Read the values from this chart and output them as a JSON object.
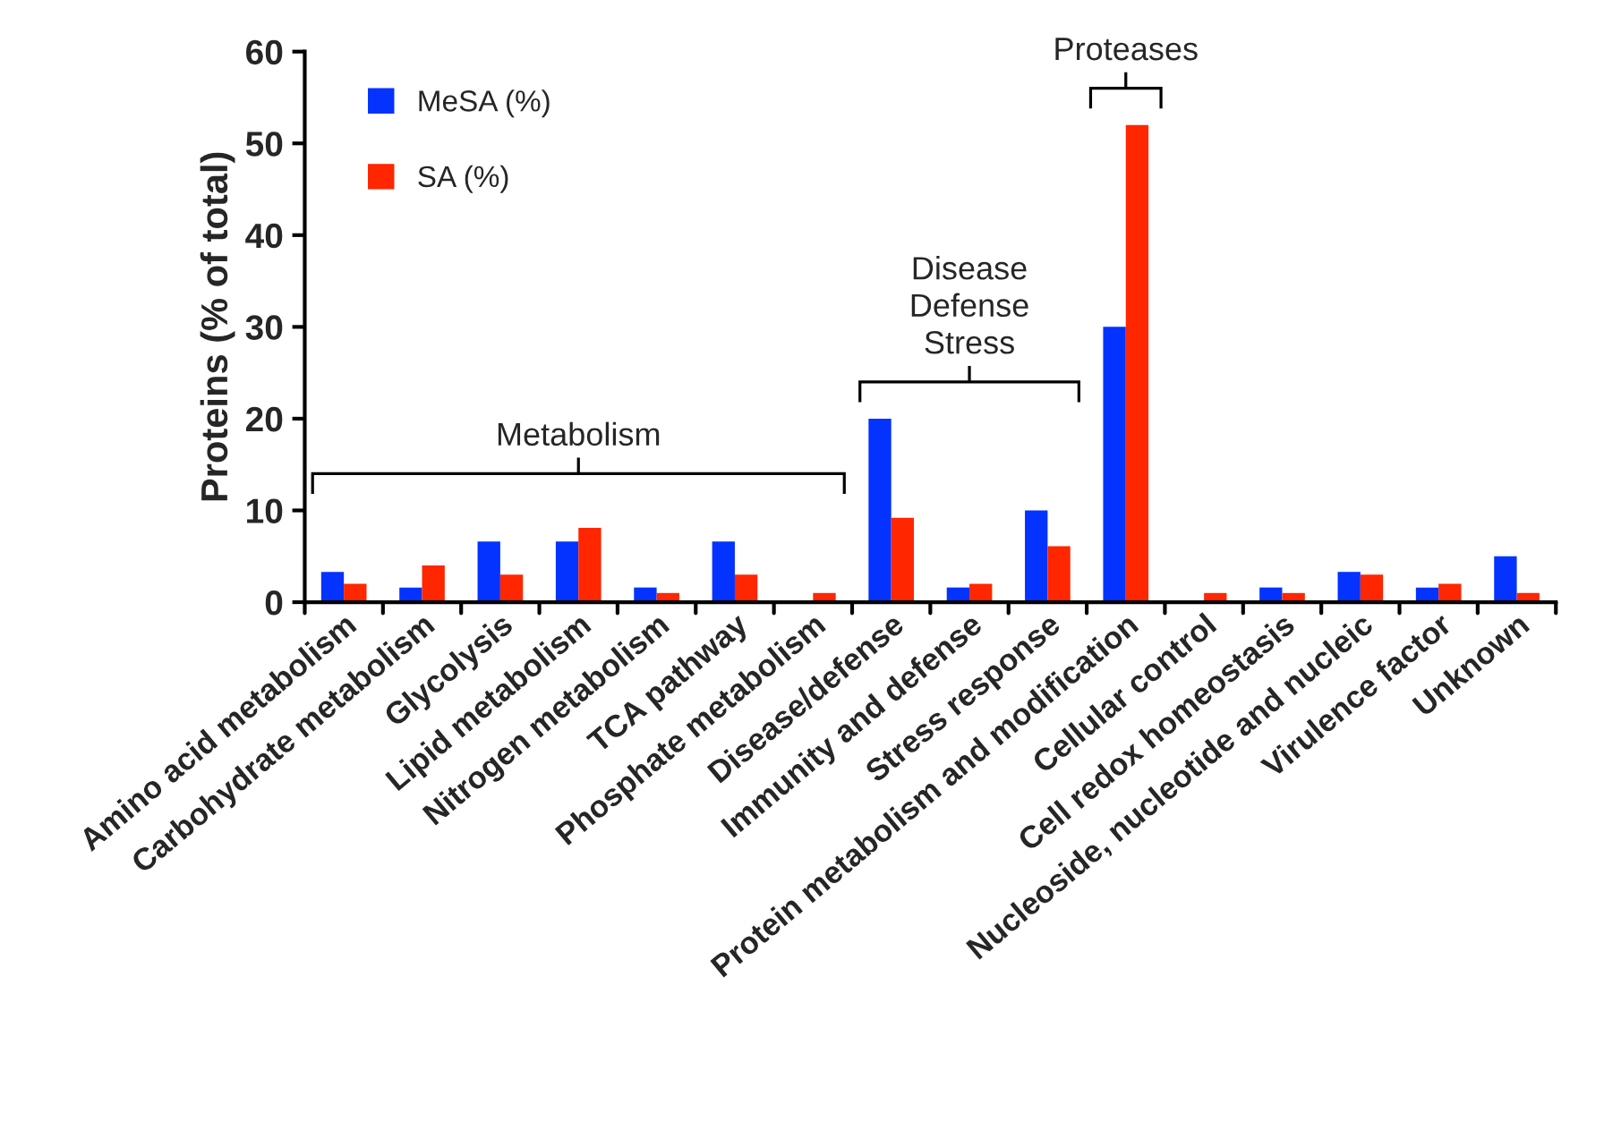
{
  "chart_data": {
    "type": "bar",
    "ylabel": "Proteins (% of total)",
    "categories": [
      "Amino acid metabolism",
      "Carbohydrate metabolism",
      "Glycolysis",
      "Lipid metabolism",
      "Nitrogen metabolism",
      "TCA pathway",
      "Phosphate metabolism",
      "Disease/defense",
      "Immunity and defense",
      "Stress response",
      "Protein metabolism and modification",
      "Cellular control",
      "Cell redox homeostasis",
      "Nucleoside, nucleotide and nucleic",
      "Virulence factor",
      "Unknown"
    ],
    "series": [
      {
        "name": "MeSA (%)",
        "color": "#0433ff",
        "values": [
          3.3,
          1.6,
          6.6,
          6.6,
          1.6,
          6.6,
          0,
          20,
          1.6,
          10,
          30,
          0,
          1.6,
          3.3,
          1.6,
          5.0
        ]
      },
      {
        "name": "SA (%)",
        "color": "#ff2600",
        "values": [
          2.0,
          4.0,
          3.0,
          8.1,
          1.0,
          3.0,
          1.0,
          9.2,
          2.0,
          6.1,
          52,
          1.0,
          1.0,
          3.0,
          2.0,
          1.0
        ]
      }
    ],
    "ylim": [
      0,
      60
    ],
    "yticks": [
      0,
      10,
      20,
      30,
      40,
      50,
      60
    ],
    "grid": false,
    "legend": "top left",
    "annotations": [
      "Metabolism",
      "Disease\nDefense\nStress",
      "Proteases"
    ]
  }
}
